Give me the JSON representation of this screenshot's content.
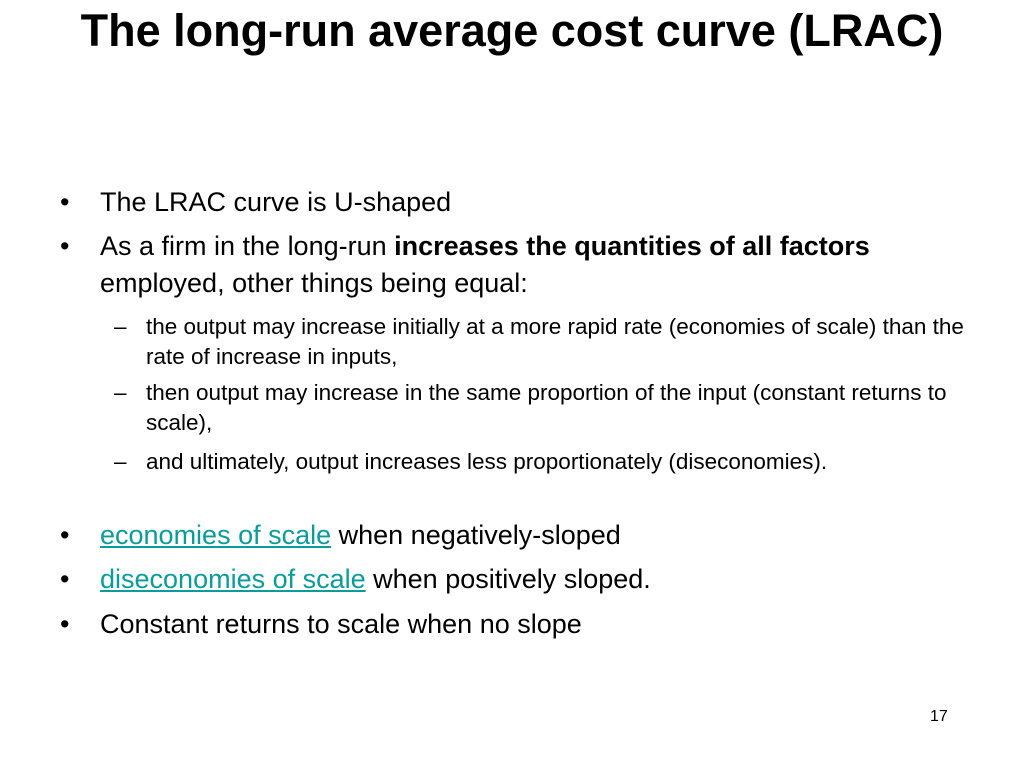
{
  "title": "The long-run average cost curve (LRAC)",
  "bullets": [
    {
      "text": "The LRAC curve is U-shaped"
    },
    {
      "lead": "As a firm in the long-run ",
      "bold": "increases the quantities of all factors",
      "tail": " employed, other things being equal:",
      "subitems": [
        "the output may increase initially at a more rapid rate (economies of scale) than the rate of increase in inputs,",
        "then output may increase in the same proportion of the input (constant returns to scale),",
        "and ultimately, output increases less proportionately (diseconomies)."
      ]
    },
    {
      "link": "economies of scale",
      "tail": " when negatively-sloped"
    },
    {
      "link": "diseconomies of scale",
      "tail": " when positively sloped."
    },
    {
      "text": "Constant returns to scale when no slope"
    }
  ],
  "page_number": "17"
}
